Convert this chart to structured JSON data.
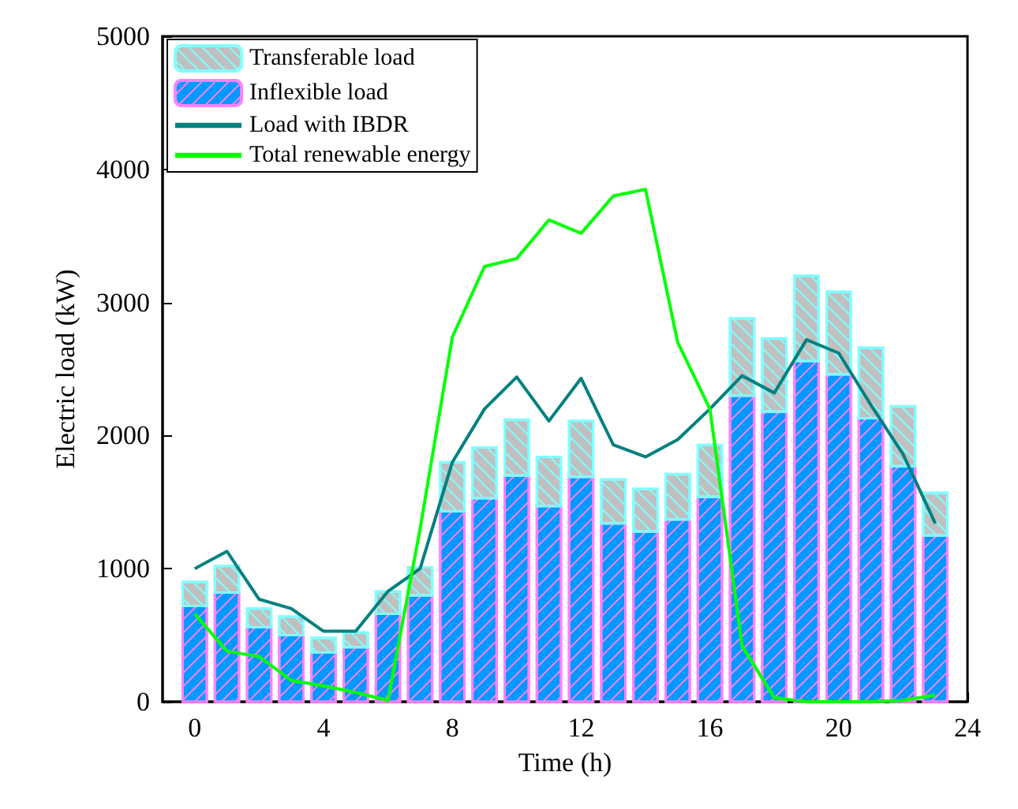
{
  "chart_data": {
    "type": "bar",
    "stacked": true,
    "xlabel": "Time (h)",
    "ylabel": "Electric load (kW)",
    "x": [
      0,
      1,
      2,
      3,
      4,
      5,
      6,
      7,
      8,
      9,
      10,
      11,
      12,
      13,
      14,
      15,
      16,
      17,
      18,
      19,
      20,
      21,
      22,
      23
    ],
    "xlim": [
      -1,
      24
    ],
    "xticks": [
      0,
      4,
      8,
      12,
      16,
      20,
      24
    ],
    "ylim": [
      0,
      5000
    ],
    "yticks": [
      0,
      1000,
      2000,
      3000,
      4000,
      5000
    ],
    "grid": false,
    "legend": "top left",
    "series": [
      {
        "name": "Inflexible load",
        "color": "#0099ff",
        "values": [
          720,
          820,
          560,
          500,
          370,
          410,
          660,
          800,
          1430,
          1530,
          1700,
          1470,
          1690,
          1340,
          1280,
          1370,
          1540,
          2300,
          2180,
          2560,
          2460,
          2130,
          1770,
          1250
        ]
      },
      {
        "name": "Transferable load",
        "color": "#c0c0c0",
        "values": [
          180,
          200,
          140,
          140,
          110,
          110,
          170,
          210,
          370,
          380,
          420,
          370,
          420,
          330,
          320,
          340,
          390,
          580,
          550,
          640,
          620,
          530,
          450,
          320
        ]
      },
      {
        "name": "Load with IBDR",
        "type": "line",
        "color": "#008080",
        "values": [
          1000,
          1130,
          770,
          700,
          530,
          530,
          830,
          1000,
          1800,
          2200,
          2440,
          2110,
          2430,
          1930,
          1840,
          1970,
          2200,
          2450,
          2320,
          2720,
          2620,
          2230,
          1860,
          1340
        ]
      },
      {
        "name": "Total renewable energy",
        "type": "line",
        "color": "#00ff00",
        "values": [
          660,
          380,
          340,
          160,
          120,
          70,
          10,
          1300,
          2740,
          3270,
          3330,
          3620,
          3520,
          3800,
          3850,
          2700,
          2200,
          420,
          30,
          0,
          0,
          0,
          10,
          50
        ]
      }
    ]
  }
}
